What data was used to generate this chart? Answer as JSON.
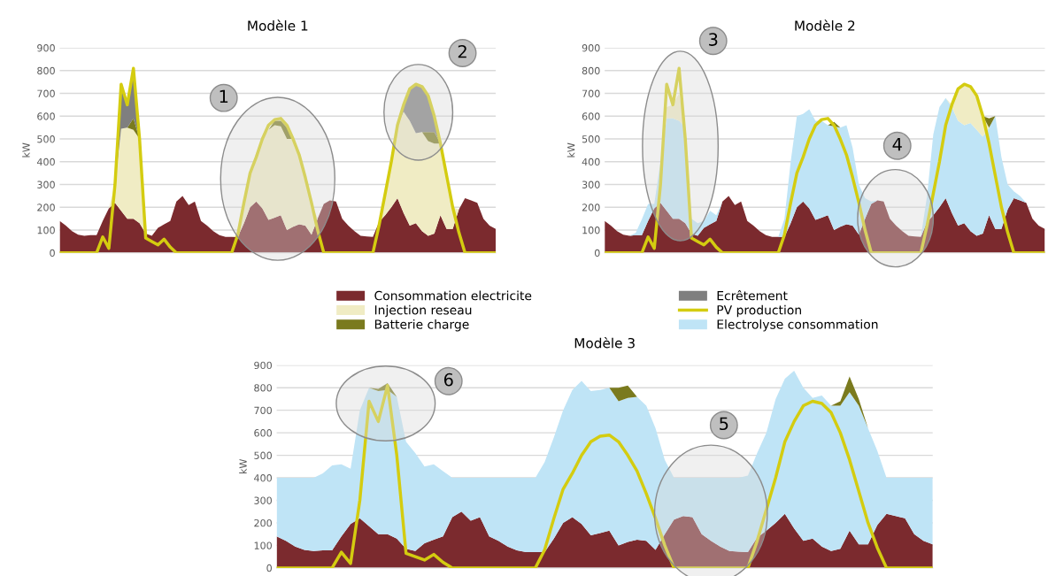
{
  "chart_data": [
    {
      "type": "area",
      "title": "Modèle 1",
      "ylabel": "kW",
      "stacked": true,
      "ylim": [
        0,
        900
      ],
      "yticks": [
        0,
        100,
        200,
        300,
        400,
        500,
        600,
        700,
        800,
        900
      ],
      "grid": "y",
      "tick_labels": "y",
      "legend": "bottom",
      "annotations": [
        "1",
        "2"
      ],
      "categories": [
        null,
        null,
        null,
        null,
        null,
        null,
        null,
        null,
        null,
        null,
        null,
        null,
        null,
        null,
        null,
        null,
        null,
        null,
        null,
        null,
        null,
        null,
        null,
        null,
        null,
        null,
        null,
        null,
        null,
        null,
        null,
        null,
        null,
        null,
        null,
        null,
        null,
        null,
        null,
        null,
        null,
        null,
        null,
        null,
        null,
        null,
        null,
        null,
        null,
        null,
        null,
        null,
        null,
        null,
        null,
        null,
        null,
        null,
        null,
        null,
        null,
        null,
        null,
        null,
        null,
        null,
        null,
        null,
        null,
        null,
        null,
        null
      ],
      "series": [
        {
          "name": "Consommation electricite",
          "color": "#7b2a2e",
          "values": [
            140,
            120,
            95,
            80,
            75,
            78,
            78,
            140,
            195,
            220,
            185,
            150,
            150,
            130,
            85,
            75,
            110,
            125,
            140,
            225,
            250,
            210,
            225,
            140,
            120,
            95,
            78,
            70,
            70,
            70,
            130,
            200,
            225,
            195,
            145,
            155,
            165,
            100,
            115,
            125,
            120,
            80,
            150,
            215,
            230,
            225,
            150,
            120,
            95,
            75,
            72,
            70,
            135,
            165,
            200,
            240,
            175,
            120,
            130,
            95,
            75,
            85,
            165,
            105,
            105,
            190,
            240,
            230,
            220,
            150,
            120,
            105
          ]
        },
        {
          "name": "Injection reseau",
          "color": "#f0ecc4",
          "values": [
            null,
            null,
            null,
            null,
            null,
            null,
            null,
            null,
            0,
            80,
            360,
            400,
            390,
            370,
            0,
            null,
            null,
            null,
            null,
            null,
            null,
            null,
            null,
            null,
            null,
            null,
            null,
            null,
            0,
            10,
            90,
            150,
            195,
            305,
            395,
            405,
            390,
            400,
            385,
            305,
            210,
            140,
            0,
            null,
            null,
            null,
            null,
            null,
            null,
            null,
            null,
            null,
            0,
            95,
            200,
            320,
            445,
            460,
            395,
            435,
            415,
            395,
            315,
            235,
            95,
            0,
            null,
            null,
            null,
            null,
            null,
            null
          ]
        },
        {
          "name": "Batterie charge",
          "color": "#7a7a1e",
          "values": [
            null,
            null,
            null,
            null,
            null,
            null,
            null,
            null,
            null,
            null,
            null,
            0,
            50,
            0,
            null,
            null,
            null,
            null,
            null,
            null,
            null,
            null,
            null,
            null,
            null,
            null,
            null,
            null,
            null,
            null,
            null,
            null,
            null,
            null,
            0,
            20,
            25,
            50,
            0,
            null,
            null,
            null,
            null,
            null,
            null,
            null,
            null,
            null,
            null,
            null,
            null,
            null,
            null,
            null,
            null,
            null,
            null,
            null,
            null,
            0,
            40,
            50,
            0,
            null,
            null,
            null,
            null,
            null,
            null,
            null,
            null,
            null
          ]
        },
        {
          "name": "Ecrêtement",
          "color": "#7f7f7f",
          "values": [
            null,
            null,
            null,
            null,
            null,
            null,
            null,
            null,
            null,
            0,
            195,
            100,
            220,
            0,
            null,
            null,
            null,
            null,
            null,
            null,
            null,
            null,
            null,
            null,
            null,
            null,
            null,
            null,
            null,
            null,
            null,
            null,
            null,
            null,
            null,
            null,
            null,
            null,
            null,
            null,
            null,
            null,
            null,
            null,
            null,
            null,
            null,
            null,
            null,
            null,
            null,
            null,
            null,
            null,
            null,
            0,
            30,
            140,
            215,
            200,
            160,
            70,
            0,
            null,
            null,
            null,
            null,
            null,
            null,
            null,
            null,
            null
          ]
        },
        {
          "name": "PV production",
          "type": "line",
          "color": "#d4cc10",
          "values": [
            0,
            0,
            0,
            0,
            0,
            0,
            0,
            70,
            20,
            300,
            740,
            650,
            810,
            500,
            65,
            50,
            35,
            60,
            25,
            0,
            0,
            0,
            0,
            0,
            0,
            0,
            0,
            0,
            0,
            80,
            220,
            350,
            420,
            500,
            560,
            585,
            590,
            560,
            500,
            430,
            330,
            220,
            100,
            0,
            0,
            0,
            0,
            0,
            0,
            0,
            0,
            0,
            120,
            260,
            400,
            560,
            650,
            720,
            740,
            730,
            690,
            600,
            480,
            340,
            200,
            90,
            0,
            0,
            0,
            0,
            0,
            0
          ]
        }
      ]
    },
    {
      "type": "area",
      "title": "Modèle 2",
      "ylabel": "kW",
      "stacked": true,
      "ylim": [
        0,
        900
      ],
      "yticks": [
        0,
        100,
        200,
        300,
        400,
        500,
        600,
        700,
        800,
        900
      ],
      "grid": "y",
      "tick_labels": "y",
      "legend": "bottom",
      "annotations": [
        "3",
        "4"
      ],
      "categories": [
        null,
        null,
        null,
        null,
        null,
        null,
        null,
        null,
        null,
        null,
        null,
        null,
        null,
        null,
        null,
        null,
        null,
        null,
        null,
        null,
        null,
        null,
        null,
        null,
        null,
        null,
        null,
        null,
        null,
        null,
        null,
        null,
        null,
        null,
        null,
        null,
        null,
        null,
        null,
        null,
        null,
        null,
        null,
        null,
        null,
        null,
        null,
        null,
        null,
        null,
        null,
        null,
        null,
        null,
        null,
        null,
        null,
        null,
        null,
        null,
        null,
        null,
        null,
        null,
        null,
        null,
        null,
        null,
        null,
        null,
        null,
        null
      ],
      "series": [
        {
          "name": "Consommation electricite",
          "color": "#7b2a2e",
          "values": [
            140,
            120,
            95,
            80,
            75,
            78,
            78,
            140,
            195,
            220,
            185,
            150,
            150,
            130,
            85,
            75,
            110,
            125,
            140,
            225,
            250,
            210,
            225,
            140,
            120,
            95,
            78,
            70,
            70,
            70,
            130,
            200,
            225,
            195,
            145,
            155,
            165,
            100,
            115,
            125,
            120,
            80,
            150,
            215,
            230,
            225,
            150,
            120,
            95,
            75,
            72,
            70,
            135,
            165,
            200,
            240,
            175,
            120,
            130,
            95,
            75,
            85,
            165,
            105,
            105,
            190,
            240,
            230,
            220,
            150,
            120,
            105
          ]
        },
        {
          "name": "Electrolyse consommation",
          "color": "#bfe4f6",
          "values": [
            null,
            null,
            null,
            null,
            0,
            10,
            70,
            75,
            20,
            180,
            405,
            440,
            430,
            420,
            65,
            55,
            30,
            60,
            25,
            0,
            null,
            null,
            null,
            null,
            null,
            null,
            null,
            null,
            0,
            80,
            270,
            400,
            385,
            435,
            435,
            425,
            395,
            455,
            435,
            435,
            340,
            220,
            90,
            10,
            0,
            null,
            null,
            null,
            null,
            null,
            null,
            0,
            115,
            355,
            440,
            440,
            465,
            460,
            430,
            475,
            465,
            425,
            385,
            495,
            315,
            110,
            30,
            20,
            0,
            null,
            null,
            null
          ]
        },
        {
          "name": "Injection reseau",
          "color": "#f0ecc4",
          "values": [
            null,
            null,
            null,
            null,
            null,
            null,
            null,
            null,
            null,
            0,
            50,
            60,
            120,
            0,
            null,
            null,
            null,
            null,
            null,
            null,
            null,
            null,
            null,
            null,
            null,
            null,
            null,
            null,
            null,
            null,
            null,
            null,
            null,
            null,
            null,
            null,
            null,
            null,
            null,
            null,
            null,
            null,
            null,
            null,
            null,
            null,
            null,
            null,
            null,
            null,
            null,
            null,
            null,
            null,
            null,
            0,
            10,
            140,
            180,
            160,
            160,
            90,
            0,
            null,
            null,
            null,
            null,
            null,
            null,
            null,
            null,
            null
          ]
        },
        {
          "name": "Batterie charge",
          "color": "#7a7a1e",
          "values": [
            null,
            null,
            null,
            null,
            null,
            null,
            null,
            null,
            null,
            null,
            null,
            null,
            null,
            null,
            null,
            null,
            null,
            null,
            null,
            null,
            null,
            null,
            null,
            null,
            null,
            null,
            null,
            null,
            null,
            null,
            null,
            null,
            null,
            null,
            null,
            null,
            0,
            20,
            0,
            null,
            null,
            null,
            null,
            null,
            null,
            null,
            null,
            null,
            null,
            null,
            null,
            null,
            null,
            null,
            null,
            null,
            null,
            null,
            null,
            null,
            null,
            0,
            40,
            0,
            null,
            null,
            null,
            null,
            null,
            null,
            null,
            null
          ]
        },
        {
          "name": "PV production",
          "type": "line",
          "color": "#d4cc10",
          "values": [
            0,
            0,
            0,
            0,
            0,
            0,
            0,
            70,
            20,
            300,
            740,
            650,
            810,
            500,
            65,
            50,
            35,
            60,
            25,
            0,
            0,
            0,
            0,
            0,
            0,
            0,
            0,
            0,
            0,
            80,
            220,
            350,
            420,
            500,
            560,
            585,
            590,
            560,
            500,
            430,
            330,
            220,
            100,
            0,
            0,
            0,
            0,
            0,
            0,
            0,
            0,
            0,
            120,
            260,
            400,
            560,
            650,
            720,
            740,
            730,
            690,
            600,
            480,
            340,
            200,
            90,
            0,
            0,
            0,
            0,
            0,
            0
          ]
        }
      ]
    },
    {
      "type": "area",
      "title": "Modèle 3",
      "ylabel": "kW",
      "stacked": true,
      "ylim": [
        0,
        900
      ],
      "yticks": [
        0,
        100,
        200,
        300,
        400,
        500,
        600,
        700,
        800,
        900
      ],
      "grid": "y",
      "tick_labels": "y",
      "annotations": [
        "6",
        "5"
      ],
      "categories": [
        null,
        null,
        null,
        null,
        null,
        null,
        null,
        null,
        null,
        null,
        null,
        null,
        null,
        null,
        null,
        null,
        null,
        null,
        null,
        null,
        null,
        null,
        null,
        null,
        null,
        null,
        null,
        null,
        null,
        null,
        null,
        null,
        null,
        null,
        null,
        null,
        null,
        null,
        null,
        null,
        null,
        null,
        null,
        null,
        null,
        null,
        null,
        null,
        null,
        null,
        null,
        null,
        null,
        null,
        null,
        null,
        null,
        null,
        null,
        null,
        null,
        null,
        null,
        null,
        null,
        null,
        null,
        null,
        null,
        null,
        null,
        null
      ],
      "series": [
        {
          "name": "Consommation electricite",
          "color": "#7b2a2e",
          "values": [
            140,
            120,
            95,
            80,
            75,
            78,
            78,
            140,
            195,
            220,
            185,
            150,
            150,
            130,
            85,
            75,
            110,
            125,
            140,
            225,
            250,
            210,
            225,
            140,
            120,
            95,
            78,
            70,
            70,
            70,
            130,
            200,
            225,
            195,
            145,
            155,
            165,
            100,
            115,
            125,
            120,
            80,
            150,
            215,
            230,
            225,
            150,
            120,
            95,
            75,
            72,
            70,
            135,
            165,
            200,
            240,
            175,
            120,
            130,
            95,
            75,
            85,
            165,
            105,
            105,
            190,
            240,
            230,
            220,
            150,
            120,
            105
          ]
        },
        {
          "name": "Electrolyse consommation",
          "color": "#bfe4f6",
          "values": [
            260,
            280,
            305,
            320,
            325,
            342,
            377,
            320,
            245,
            480,
            615,
            635,
            640,
            630,
            475,
            435,
            340,
            335,
            290,
            175,
            150,
            190,
            175,
            260,
            280,
            305,
            322,
            330,
            330,
            400,
            450,
            500,
            565,
            635,
            640,
            635,
            635,
            640,
            640,
            635,
            600,
            540,
            330,
            185,
            170,
            175,
            250,
            280,
            305,
            325,
            328,
            340,
            375,
            435,
            550,
            600,
            700,
            680,
            625,
            670,
            645,
            635,
            615,
            615,
            515,
            330,
            160,
            170,
            180,
            250,
            280,
            295
          ]
        },
        {
          "name": "Batterie charge",
          "color": "#7a7a1e",
          "values": [
            null,
            null,
            null,
            null,
            null,
            null,
            null,
            null,
            null,
            null,
            0,
            10,
            30,
            0,
            null,
            null,
            null,
            null,
            null,
            null,
            null,
            null,
            null,
            null,
            null,
            null,
            null,
            null,
            null,
            null,
            null,
            null,
            null,
            null,
            null,
            null,
            0,
            60,
            55,
            0,
            null,
            null,
            null,
            null,
            null,
            null,
            null,
            null,
            null,
            null,
            null,
            null,
            null,
            null,
            null,
            null,
            null,
            null,
            null,
            null,
            0,
            20,
            70,
            30,
            0,
            null,
            null,
            null,
            null,
            null,
            null,
            null
          ]
        },
        {
          "name": "PV production",
          "type": "line",
          "color": "#d4cc10",
          "values": [
            0,
            0,
            0,
            0,
            0,
            0,
            0,
            70,
            20,
            300,
            740,
            650,
            810,
            500,
            65,
            50,
            35,
            60,
            25,
            0,
            0,
            0,
            0,
            0,
            0,
            0,
            0,
            0,
            0,
            80,
            220,
            350,
            420,
            500,
            560,
            585,
            590,
            560,
            500,
            430,
            330,
            220,
            100,
            0,
            0,
            0,
            0,
            0,
            0,
            0,
            0,
            0,
            120,
            260,
            400,
            560,
            650,
            720,
            740,
            730,
            690,
            600,
            480,
            340,
            200,
            90,
            0,
            0,
            0,
            0,
            0,
            0
          ]
        }
      ]
    }
  ]
}
